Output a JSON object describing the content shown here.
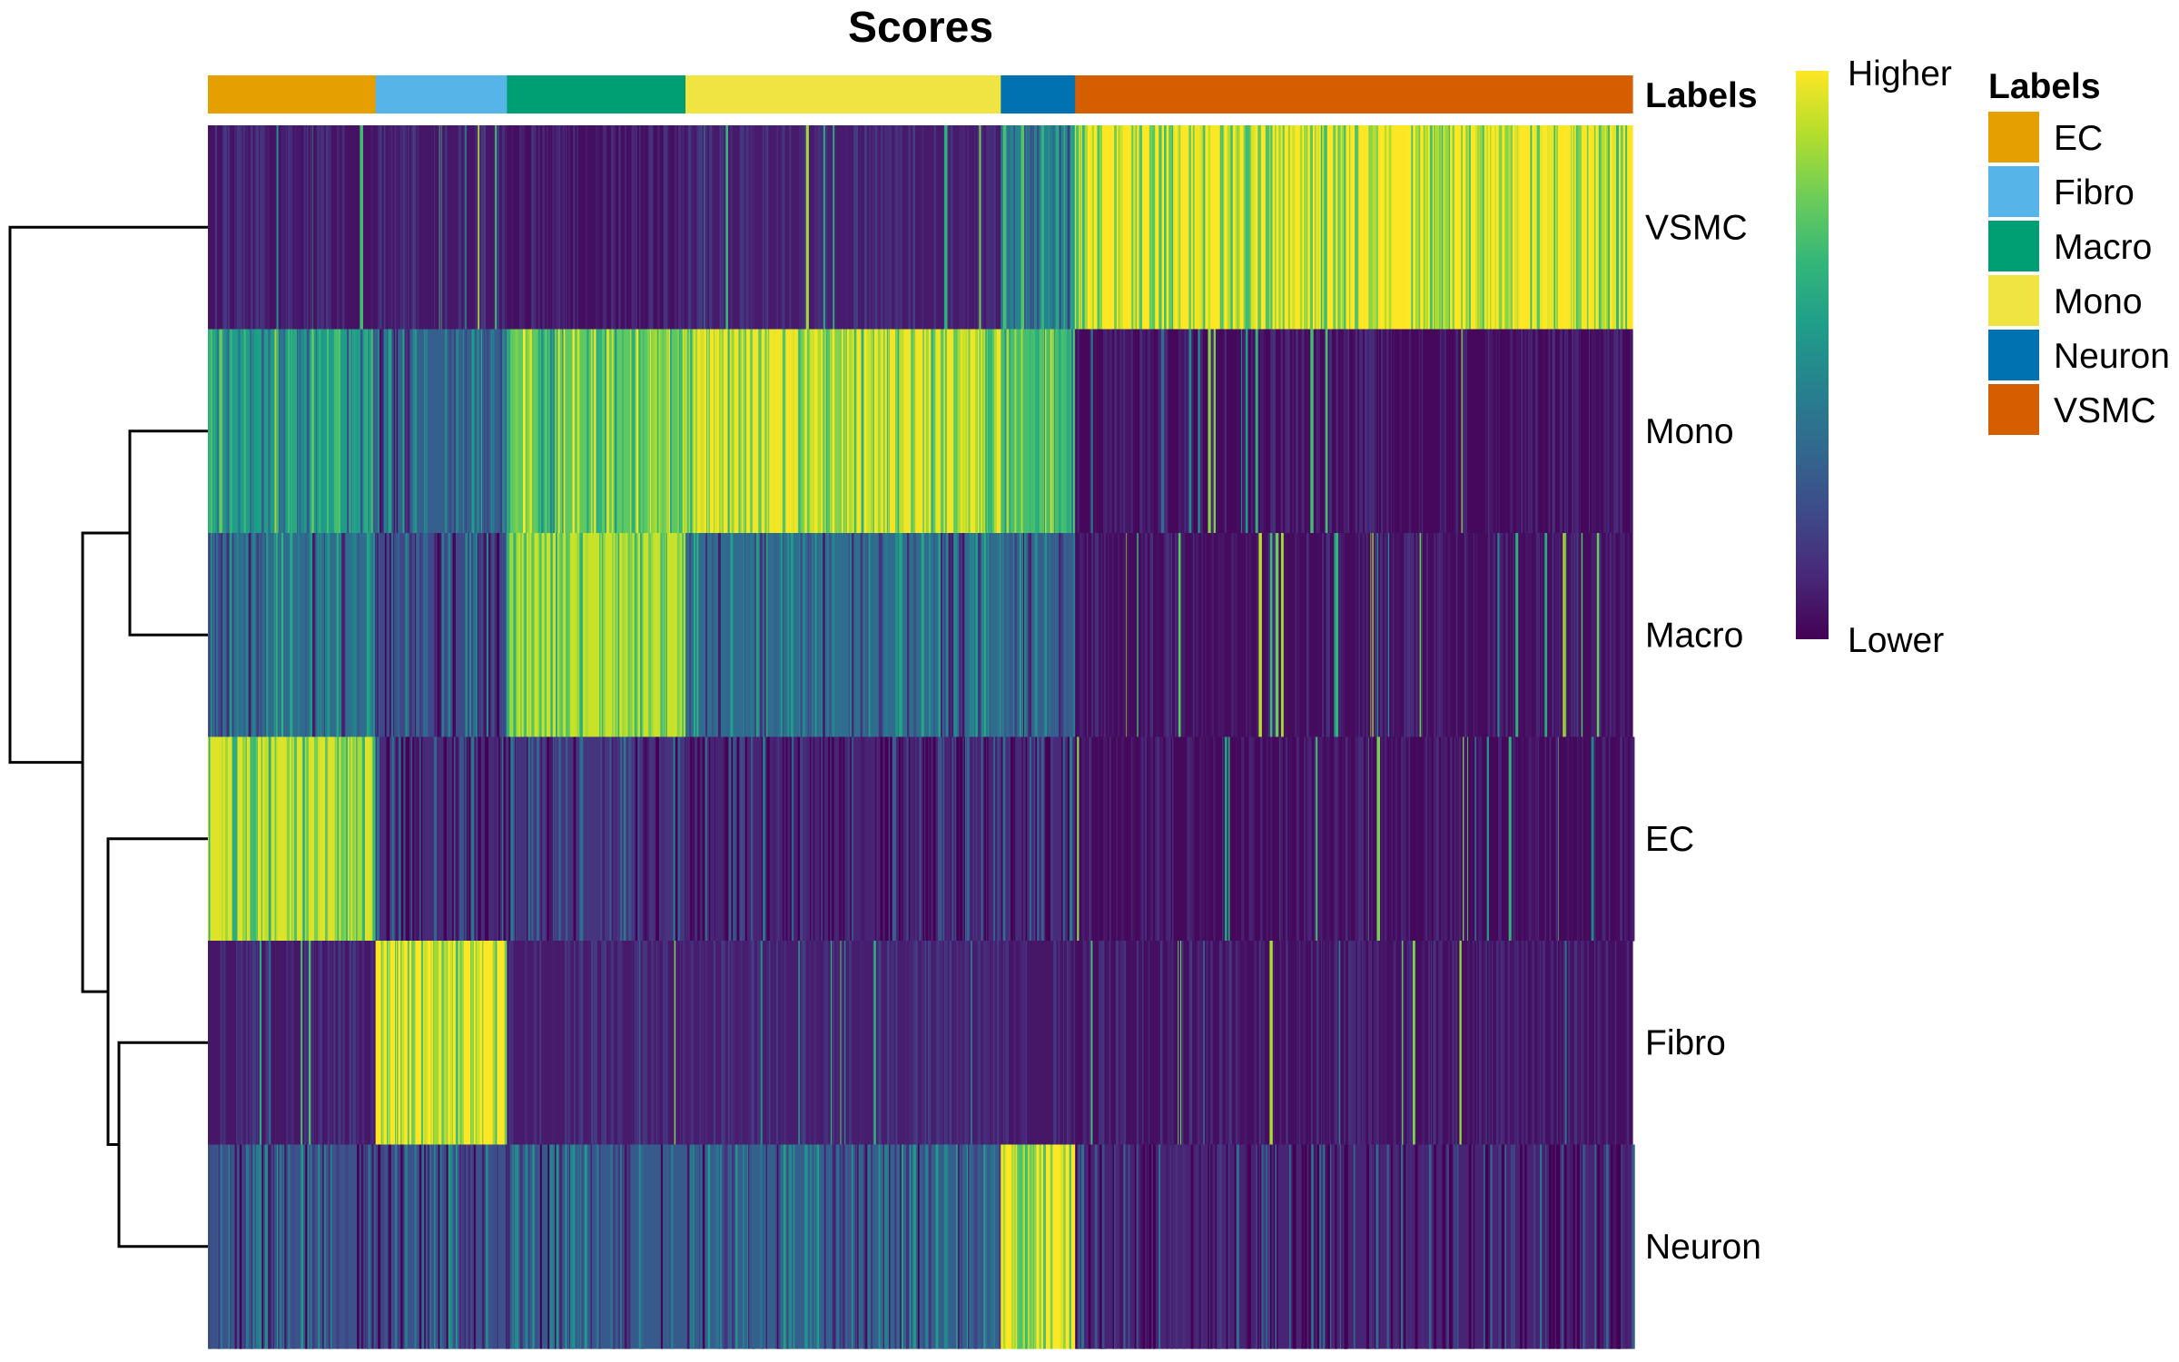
{
  "chart_data": {
    "type": "heatmap",
    "title": "Scores",
    "rows": [
      "VSMC",
      "Mono",
      "Macro",
      "EC",
      "Fibro",
      "Neuron"
    ],
    "annotation": {
      "title": "Labels",
      "groups": [
        {
          "label": "EC",
          "color": "#E69F00",
          "cells": 185
        },
        {
          "label": "Fibro",
          "color": "#56B4E9",
          "cells": 145
        },
        {
          "label": "Macro",
          "color": "#009E73",
          "cells": 197
        },
        {
          "label": "Mono",
          "color": "#F0E442",
          "cells": 348
        },
        {
          "label": "Neuron",
          "color": "#0072B2",
          "cells": 82
        },
        {
          "label": "VSMC",
          "color": "#D55E00",
          "cells": 615
        }
      ]
    },
    "mean_scores": {
      "VSMC": {
        "EC": 0.05,
        "Fibro": 0.06,
        "Macro": 0.04,
        "Mono": 0.07,
        "Neuron": 0.45,
        "VSMC": 1.0
      },
      "Mono": {
        "EC": 0.55,
        "Fibro": 0.3,
        "Macro": 0.75,
        "Mono": 0.98,
        "Neuron": 0.7,
        "VSMC": 0.02
      },
      "Macro": {
        "EC": 0.35,
        "Fibro": 0.22,
        "Macro": 0.92,
        "Mono": 0.35,
        "Neuron": 0.3,
        "VSMC": 0.03
      },
      "EC": {
        "EC": 0.95,
        "Fibro": 0.12,
        "Macro": 0.15,
        "Mono": 0.1,
        "Neuron": 0.12,
        "VSMC": 0.02
      },
      "Fibro": {
        "EC": 0.06,
        "Fibro": 1.0,
        "Macro": 0.07,
        "Mono": 0.08,
        "Neuron": 0.06,
        "VSMC": 0.04
      },
      "Neuron": {
        "EC": 0.25,
        "Fibro": 0.25,
        "Macro": 0.28,
        "Mono": 0.3,
        "Neuron": 1.0,
        "VSMC": 0.1
      }
    },
    "dendrogram": [
      {
        "merge": [
          "Mono",
          "Macro"
        ]
      },
      {
        "merge": [
          "Fibro",
          "Neuron"
        ]
      },
      {
        "merge": [
          "EC",
          "Fibro+Neuron"
        ]
      },
      {
        "merge": [
          "Mono+Macro",
          "EC+Fibro+Neuron"
        ]
      },
      {
        "merge": [
          "VSMC",
          "rest"
        ]
      }
    ],
    "colorbar": {
      "high_label": "Higher",
      "low_label": "Lower",
      "colors": [
        "#440154",
        "#482878",
        "#3E4A89",
        "#31688E",
        "#26828E",
        "#1F9E89",
        "#35B779",
        "#6DCD59",
        "#B4DE2C",
        "#FDE725"
      ]
    },
    "legend": {
      "title": "Labels",
      "placement": "right"
    }
  }
}
